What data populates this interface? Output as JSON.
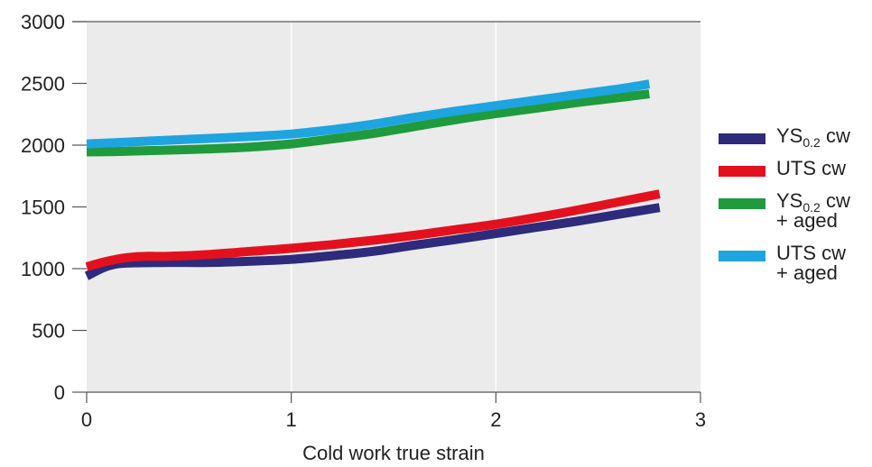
{
  "chart_data": {
    "type": "line",
    "title": "",
    "xlabel": "Cold work true strain",
    "ylabel": "",
    "xlim": [
      0,
      3
    ],
    "ylim": [
      0,
      3000
    ],
    "xticks": [
      "0",
      "1",
      "2",
      "3"
    ],
    "yticks": [
      "0",
      "500",
      "1000",
      "1500",
      "2000",
      "2500",
      "3000"
    ],
    "grid": "vertical",
    "legend_position": "right",
    "series": [
      {
        "name": "YS0.2 cw",
        "color": "#2e2a7c",
        "points": [
          [
            0,
            940
          ],
          [
            0.1,
            1020
          ],
          [
            0.2,
            1045
          ],
          [
            0.4,
            1050
          ],
          [
            0.6,
            1050
          ],
          [
            0.8,
            1060
          ],
          [
            1.0,
            1075
          ],
          [
            1.2,
            1105
          ],
          [
            1.4,
            1140
          ],
          [
            1.6,
            1190
          ],
          [
            1.8,
            1235
          ],
          [
            2.0,
            1285
          ],
          [
            2.2,
            1335
          ],
          [
            2.4,
            1385
          ],
          [
            2.6,
            1440
          ],
          [
            2.8,
            1495
          ]
        ]
      },
      {
        "name": "UTS cw",
        "color": "#e3111e",
        "points": [
          [
            0,
            1015
          ],
          [
            0.1,
            1060
          ],
          [
            0.2,
            1090
          ],
          [
            0.3,
            1100
          ],
          [
            0.4,
            1100
          ],
          [
            0.6,
            1115
          ],
          [
            0.8,
            1140
          ],
          [
            1.0,
            1165
          ],
          [
            1.2,
            1195
          ],
          [
            1.4,
            1230
          ],
          [
            1.6,
            1270
          ],
          [
            1.8,
            1315
          ],
          [
            2.0,
            1360
          ],
          [
            2.2,
            1415
          ],
          [
            2.4,
            1475
          ],
          [
            2.6,
            1540
          ],
          [
            2.8,
            1605
          ]
        ]
      },
      {
        "name": "YS0.2 cw + aged",
        "color": "#1f9a3d",
        "points": [
          [
            0,
            1945
          ],
          [
            0.2,
            1950
          ],
          [
            0.4,
            1960
          ],
          [
            0.6,
            1970
          ],
          [
            0.8,
            1985
          ],
          [
            1.0,
            2010
          ],
          [
            1.2,
            2050
          ],
          [
            1.4,
            2095
          ],
          [
            1.6,
            2150
          ],
          [
            1.8,
            2205
          ],
          [
            2.0,
            2255
          ],
          [
            2.2,
            2300
          ],
          [
            2.4,
            2345
          ],
          [
            2.6,
            2385
          ],
          [
            2.75,
            2415
          ]
        ]
      },
      {
        "name": "UTS cw + aged",
        "color": "#1ea4e0",
        "points": [
          [
            0,
            2010
          ],
          [
            0.2,
            2025
          ],
          [
            0.4,
            2040
          ],
          [
            0.6,
            2055
          ],
          [
            0.8,
            2070
          ],
          [
            1.0,
            2090
          ],
          [
            1.2,
            2125
          ],
          [
            1.4,
            2170
          ],
          [
            1.6,
            2225
          ],
          [
            1.8,
            2275
          ],
          [
            2.0,
            2320
          ],
          [
            2.2,
            2365
          ],
          [
            2.4,
            2410
          ],
          [
            2.6,
            2455
          ],
          [
            2.75,
            2495
          ]
        ]
      }
    ]
  },
  "legend": {
    "items": [
      {
        "main": "YS",
        "sub": "0.2",
        "rest": " cw",
        "line2": ""
      },
      {
        "main": "UTS cw",
        "sub": "",
        "rest": "",
        "line2": ""
      },
      {
        "main": "YS",
        "sub": "0.2",
        "rest": " cw",
        "line2": "+ aged"
      },
      {
        "main": "UTS cw",
        "sub": "",
        "rest": "",
        "line2": "+ aged"
      }
    ]
  }
}
